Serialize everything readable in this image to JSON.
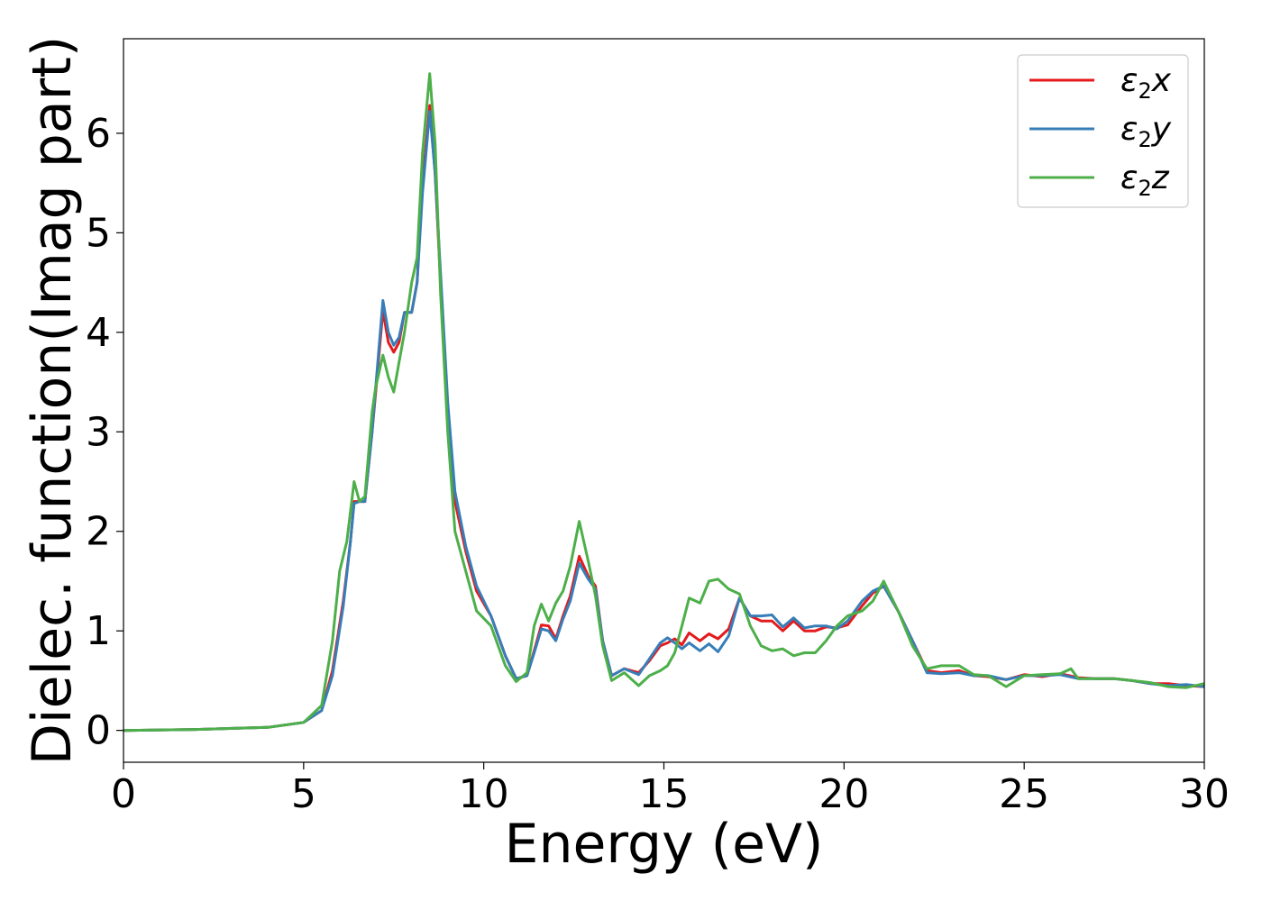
{
  "chart_data": {
    "type": "line",
    "xlabel": "Energy (eV)",
    "ylabel": "Dielec. function(Imag part)",
    "xlim": [
      0,
      30
    ],
    "ylim": [
      -0.32,
      6.95
    ],
    "xticks": [
      "0",
      "5",
      "10",
      "15",
      "20",
      "25",
      "30"
    ],
    "yticks": [
      "0",
      "1",
      "2",
      "3",
      "4",
      "5",
      "6"
    ],
    "grid": false,
    "legend_position": "top-right",
    "series": [
      {
        "name": "ε₂x",
        "legend_base": "ε",
        "legend_sub": "2",
        "legend_var": "x",
        "color": "#e41a1c",
        "points": [
          [
            0,
            0
          ],
          [
            2,
            0.01
          ],
          [
            4,
            0.03
          ],
          [
            5,
            0.08
          ],
          [
            5.5,
            0.2
          ],
          [
            5.8,
            0.6
          ],
          [
            6.1,
            1.3
          ],
          [
            6.3,
            1.9
          ],
          [
            6.4,
            2.3
          ],
          [
            6.55,
            2.3
          ],
          [
            6.7,
            2.3
          ],
          [
            6.9,
            3.0
          ],
          [
            7.0,
            3.4
          ],
          [
            7.2,
            4.22
          ],
          [
            7.35,
            3.9
          ],
          [
            7.5,
            3.8
          ],
          [
            7.65,
            3.9
          ],
          [
            7.8,
            4.2
          ],
          [
            8.0,
            4.2
          ],
          [
            8.15,
            4.5
          ],
          [
            8.3,
            5.5
          ],
          [
            8.5,
            6.28
          ],
          [
            8.65,
            5.6
          ],
          [
            8.8,
            4.5
          ],
          [
            9.0,
            3.2
          ],
          [
            9.2,
            2.3
          ],
          [
            9.5,
            1.8
          ],
          [
            9.8,
            1.4
          ],
          [
            10.2,
            1.15
          ],
          [
            10.6,
            0.75
          ],
          [
            10.9,
            0.52
          ],
          [
            11.2,
            0.55
          ],
          [
            11.4,
            0.8
          ],
          [
            11.6,
            1.06
          ],
          [
            11.8,
            1.05
          ],
          [
            12.0,
            0.92
          ],
          [
            12.2,
            1.15
          ],
          [
            12.4,
            1.35
          ],
          [
            12.65,
            1.75
          ],
          [
            12.9,
            1.55
          ],
          [
            13.1,
            1.45
          ],
          [
            13.3,
            0.9
          ],
          [
            13.55,
            0.55
          ],
          [
            13.9,
            0.62
          ],
          [
            14.3,
            0.58
          ],
          [
            14.6,
            0.7
          ],
          [
            14.9,
            0.85
          ],
          [
            15.1,
            0.88
          ],
          [
            15.3,
            0.92
          ],
          [
            15.5,
            0.86
          ],
          [
            15.7,
            0.98
          ],
          [
            16.0,
            0.9
          ],
          [
            16.25,
            0.97
          ],
          [
            16.5,
            0.92
          ],
          [
            16.8,
            1.02
          ],
          [
            17.1,
            1.33
          ],
          [
            17.4,
            1.15
          ],
          [
            17.7,
            1.1
          ],
          [
            18.0,
            1.1
          ],
          [
            18.3,
            1.0
          ],
          [
            18.6,
            1.1
          ],
          [
            18.9,
            1.0
          ],
          [
            19.2,
            1.0
          ],
          [
            19.5,
            1.04
          ],
          [
            19.8,
            1.03
          ],
          [
            20.1,
            1.06
          ],
          [
            20.5,
            1.25
          ],
          [
            20.8,
            1.38
          ],
          [
            21.1,
            1.45
          ],
          [
            21.5,
            1.2
          ],
          [
            21.9,
            0.9
          ],
          [
            22.3,
            0.6
          ],
          [
            22.7,
            0.58
          ],
          [
            23.2,
            0.6
          ],
          [
            23.6,
            0.55
          ],
          [
            24.0,
            0.54
          ],
          [
            24.5,
            0.51
          ],
          [
            25.0,
            0.56
          ],
          [
            25.5,
            0.54
          ],
          [
            26.0,
            0.57
          ],
          [
            26.5,
            0.53
          ],
          [
            27.0,
            0.52
          ],
          [
            27.5,
            0.52
          ],
          [
            28.0,
            0.5
          ],
          [
            28.5,
            0.47
          ],
          [
            29.0,
            0.47
          ],
          [
            29.5,
            0.45
          ],
          [
            30,
            0.44
          ]
        ]
      },
      {
        "name": "ε₂y",
        "legend_base": "ε",
        "legend_sub": "2",
        "legend_var": "y",
        "color": "#377eb8",
        "points": [
          [
            0,
            0
          ],
          [
            2,
            0.01
          ],
          [
            4,
            0.03
          ],
          [
            5,
            0.08
          ],
          [
            5.5,
            0.2
          ],
          [
            5.8,
            0.55
          ],
          [
            6.1,
            1.25
          ],
          [
            6.3,
            1.9
          ],
          [
            6.4,
            2.28
          ],
          [
            6.55,
            2.3
          ],
          [
            6.7,
            2.3
          ],
          [
            6.9,
            3.0
          ],
          [
            7.0,
            3.45
          ],
          [
            7.2,
            4.32
          ],
          [
            7.35,
            4.0
          ],
          [
            7.5,
            3.87
          ],
          [
            7.65,
            3.95
          ],
          [
            7.8,
            4.2
          ],
          [
            8.0,
            4.2
          ],
          [
            8.15,
            4.5
          ],
          [
            8.3,
            5.4
          ],
          [
            8.5,
            6.22
          ],
          [
            8.65,
            5.6
          ],
          [
            8.8,
            4.6
          ],
          [
            9.0,
            3.3
          ],
          [
            9.2,
            2.4
          ],
          [
            9.5,
            1.85
          ],
          [
            9.8,
            1.45
          ],
          [
            10.2,
            1.15
          ],
          [
            10.6,
            0.75
          ],
          [
            10.9,
            0.52
          ],
          [
            11.2,
            0.55
          ],
          [
            11.4,
            0.78
          ],
          [
            11.6,
            1.02
          ],
          [
            11.8,
            1.0
          ],
          [
            12.0,
            0.9
          ],
          [
            12.2,
            1.12
          ],
          [
            12.4,
            1.3
          ],
          [
            12.65,
            1.68
          ],
          [
            12.9,
            1.52
          ],
          [
            13.1,
            1.42
          ],
          [
            13.3,
            0.9
          ],
          [
            13.55,
            0.55
          ],
          [
            13.9,
            0.62
          ],
          [
            14.3,
            0.56
          ],
          [
            14.6,
            0.72
          ],
          [
            14.9,
            0.88
          ],
          [
            15.1,
            0.93
          ],
          [
            15.3,
            0.88
          ],
          [
            15.5,
            0.82
          ],
          [
            15.7,
            0.88
          ],
          [
            16.0,
            0.8
          ],
          [
            16.25,
            0.87
          ],
          [
            16.5,
            0.79
          ],
          [
            16.8,
            0.95
          ],
          [
            17.1,
            1.33
          ],
          [
            17.4,
            1.15
          ],
          [
            17.7,
            1.15
          ],
          [
            18.0,
            1.16
          ],
          [
            18.3,
            1.04
          ],
          [
            18.6,
            1.13
          ],
          [
            18.9,
            1.03
          ],
          [
            19.2,
            1.05
          ],
          [
            19.5,
            1.05
          ],
          [
            19.8,
            1.02
          ],
          [
            20.1,
            1.1
          ],
          [
            20.5,
            1.3
          ],
          [
            20.8,
            1.4
          ],
          [
            21.1,
            1.45
          ],
          [
            21.5,
            1.2
          ],
          [
            21.9,
            0.9
          ],
          [
            22.3,
            0.58
          ],
          [
            22.7,
            0.57
          ],
          [
            23.2,
            0.58
          ],
          [
            23.6,
            0.55
          ],
          [
            24.0,
            0.55
          ],
          [
            24.5,
            0.51
          ],
          [
            25.0,
            0.55
          ],
          [
            25.5,
            0.55
          ],
          [
            26.0,
            0.56
          ],
          [
            26.5,
            0.52
          ],
          [
            27.0,
            0.52
          ],
          [
            27.5,
            0.52
          ],
          [
            28.0,
            0.5
          ],
          [
            28.5,
            0.47
          ],
          [
            29.0,
            0.45
          ],
          [
            29.5,
            0.46
          ],
          [
            30,
            0.44
          ]
        ]
      },
      {
        "name": "ε₂z",
        "legend_base": "ε",
        "legend_sub": "2",
        "legend_var": "z",
        "color": "#4daf4a",
        "points": [
          [
            0,
            0
          ],
          [
            2,
            0.01
          ],
          [
            4,
            0.03
          ],
          [
            5,
            0.08
          ],
          [
            5.5,
            0.25
          ],
          [
            5.8,
            0.9
          ],
          [
            6.0,
            1.6
          ],
          [
            6.2,
            1.9
          ],
          [
            6.4,
            2.5
          ],
          [
            6.55,
            2.3
          ],
          [
            6.7,
            2.35
          ],
          [
            6.9,
            3.2
          ],
          [
            7.0,
            3.45
          ],
          [
            7.2,
            3.77
          ],
          [
            7.35,
            3.55
          ],
          [
            7.5,
            3.4
          ],
          [
            7.65,
            3.7
          ],
          [
            7.8,
            4.0
          ],
          [
            8.0,
            4.5
          ],
          [
            8.15,
            4.75
          ],
          [
            8.3,
            5.8
          ],
          [
            8.5,
            6.6
          ],
          [
            8.65,
            5.9
          ],
          [
            8.8,
            4.4
          ],
          [
            9.0,
            3.0
          ],
          [
            9.2,
            2.0
          ],
          [
            9.5,
            1.6
          ],
          [
            9.8,
            1.2
          ],
          [
            10.2,
            1.05
          ],
          [
            10.6,
            0.65
          ],
          [
            10.9,
            0.49
          ],
          [
            11.2,
            0.58
          ],
          [
            11.4,
            1.05
          ],
          [
            11.6,
            1.27
          ],
          [
            11.8,
            1.1
          ],
          [
            12.0,
            1.28
          ],
          [
            12.2,
            1.4
          ],
          [
            12.4,
            1.65
          ],
          [
            12.65,
            2.1
          ],
          [
            12.9,
            1.7
          ],
          [
            13.1,
            1.35
          ],
          [
            13.3,
            0.85
          ],
          [
            13.55,
            0.5
          ],
          [
            13.9,
            0.58
          ],
          [
            14.3,
            0.45
          ],
          [
            14.6,
            0.55
          ],
          [
            14.9,
            0.6
          ],
          [
            15.1,
            0.65
          ],
          [
            15.3,
            0.78
          ],
          [
            15.5,
            1.05
          ],
          [
            15.7,
            1.33
          ],
          [
            16.0,
            1.28
          ],
          [
            16.25,
            1.5
          ],
          [
            16.5,
            1.52
          ],
          [
            16.8,
            1.42
          ],
          [
            17.1,
            1.37
          ],
          [
            17.4,
            1.05
          ],
          [
            17.7,
            0.85
          ],
          [
            18.0,
            0.8
          ],
          [
            18.3,
            0.82
          ],
          [
            18.6,
            0.75
          ],
          [
            18.9,
            0.78
          ],
          [
            19.2,
            0.78
          ],
          [
            19.5,
            0.9
          ],
          [
            19.8,
            1.05
          ],
          [
            20.1,
            1.15
          ],
          [
            20.5,
            1.2
          ],
          [
            20.8,
            1.3
          ],
          [
            21.1,
            1.5
          ],
          [
            21.5,
            1.2
          ],
          [
            21.9,
            0.85
          ],
          [
            22.3,
            0.62
          ],
          [
            22.7,
            0.65
          ],
          [
            23.2,
            0.65
          ],
          [
            23.6,
            0.56
          ],
          [
            24.0,
            0.55
          ],
          [
            24.5,
            0.44
          ],
          [
            25.0,
            0.55
          ],
          [
            25.5,
            0.56
          ],
          [
            26.0,
            0.57
          ],
          [
            26.3,
            0.62
          ],
          [
            26.5,
            0.52
          ],
          [
            27.0,
            0.52
          ],
          [
            27.5,
            0.52
          ],
          [
            28.0,
            0.5
          ],
          [
            28.5,
            0.48
          ],
          [
            29.0,
            0.44
          ],
          [
            29.5,
            0.43
          ],
          [
            30,
            0.47
          ]
        ]
      }
    ]
  }
}
